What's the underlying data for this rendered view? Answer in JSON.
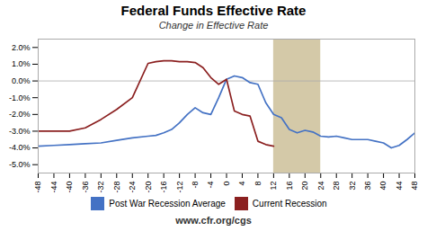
{
  "chart_data": {
    "type": "line",
    "title": "Federal Funds Effective Rate",
    "subtitle": "Change in Effective Rate",
    "footnote": "www.cfr.org/cgs",
    "xlim": [
      -48,
      48
    ],
    "ylim": [
      -5.5,
      2.5
    ],
    "xticks": [
      -48,
      -44,
      -40,
      -36,
      -32,
      -28,
      -24,
      -20,
      -16,
      -12,
      -8,
      -4,
      0,
      4,
      8,
      12,
      16,
      20,
      24,
      28,
      32,
      36,
      40,
      44,
      48
    ],
    "yticks": [
      {
        "value": -5.0,
        "label": "-5.0%"
      },
      {
        "value": -4.0,
        "label": "-4.0%"
      },
      {
        "value": -3.0,
        "label": "-3.0%"
      },
      {
        "value": -2.0,
        "label": "-2.0%"
      },
      {
        "value": -1.0,
        "label": "-1.0%"
      },
      {
        "value": 0.0,
        "label": "0.0%"
      },
      {
        "value": 1.0,
        "label": "1.0%"
      },
      {
        "value": 2.0,
        "label": "2.0%"
      }
    ],
    "grid": false,
    "shaded_region": {
      "x": [
        12,
        24
      ],
      "color": "#d4c9a8"
    },
    "reference_line_y": 0,
    "series": [
      {
        "name": "Post War Recession Average",
        "color": "#4472c4",
        "x": [
          -48,
          -44,
          -40,
          -36,
          -32,
          -28,
          -24,
          -20,
          -18,
          -16,
          -14,
          -12,
          -10,
          -8,
          -6,
          -4,
          -2,
          0,
          2,
          4,
          6,
          8,
          10,
          12,
          14,
          16,
          18,
          20,
          22,
          24,
          26,
          28,
          30,
          32,
          34,
          36,
          38,
          40,
          42,
          44,
          46,
          48
        ],
        "values": [
          -3.9,
          -3.85,
          -3.8,
          -3.75,
          -3.7,
          -3.55,
          -3.4,
          -3.3,
          -3.25,
          -3.1,
          -2.9,
          -2.5,
          -2.0,
          -1.6,
          -1.9,
          -2.0,
          -1.0,
          0.1,
          0.3,
          0.2,
          -0.1,
          -0.2,
          -1.3,
          -2.0,
          -2.2,
          -2.9,
          -3.1,
          -2.95,
          -3.05,
          -3.3,
          -3.35,
          -3.3,
          -3.4,
          -3.5,
          -3.5,
          -3.5,
          -3.6,
          -3.7,
          -4.0,
          -3.85,
          -3.5,
          -3.1
        ]
      },
      {
        "name": "Current Recession",
        "color": "#8b2020",
        "x": [
          -48,
          -44,
          -40,
          -36,
          -32,
          -28,
          -24,
          -20,
          -18,
          -16,
          -14,
          -12,
          -10,
          -8,
          -6,
          -4,
          -2,
          0,
          2,
          4,
          6,
          8,
          10,
          12
        ],
        "values": [
          -3.0,
          -3.0,
          -3.0,
          -2.8,
          -2.3,
          -1.7,
          -1.0,
          1.05,
          1.15,
          1.2,
          1.2,
          1.15,
          1.15,
          1.1,
          0.8,
          0.2,
          -0.2,
          0.1,
          -1.8,
          -2.0,
          -2.1,
          -3.6,
          -3.8,
          -3.9
        ]
      }
    ]
  }
}
